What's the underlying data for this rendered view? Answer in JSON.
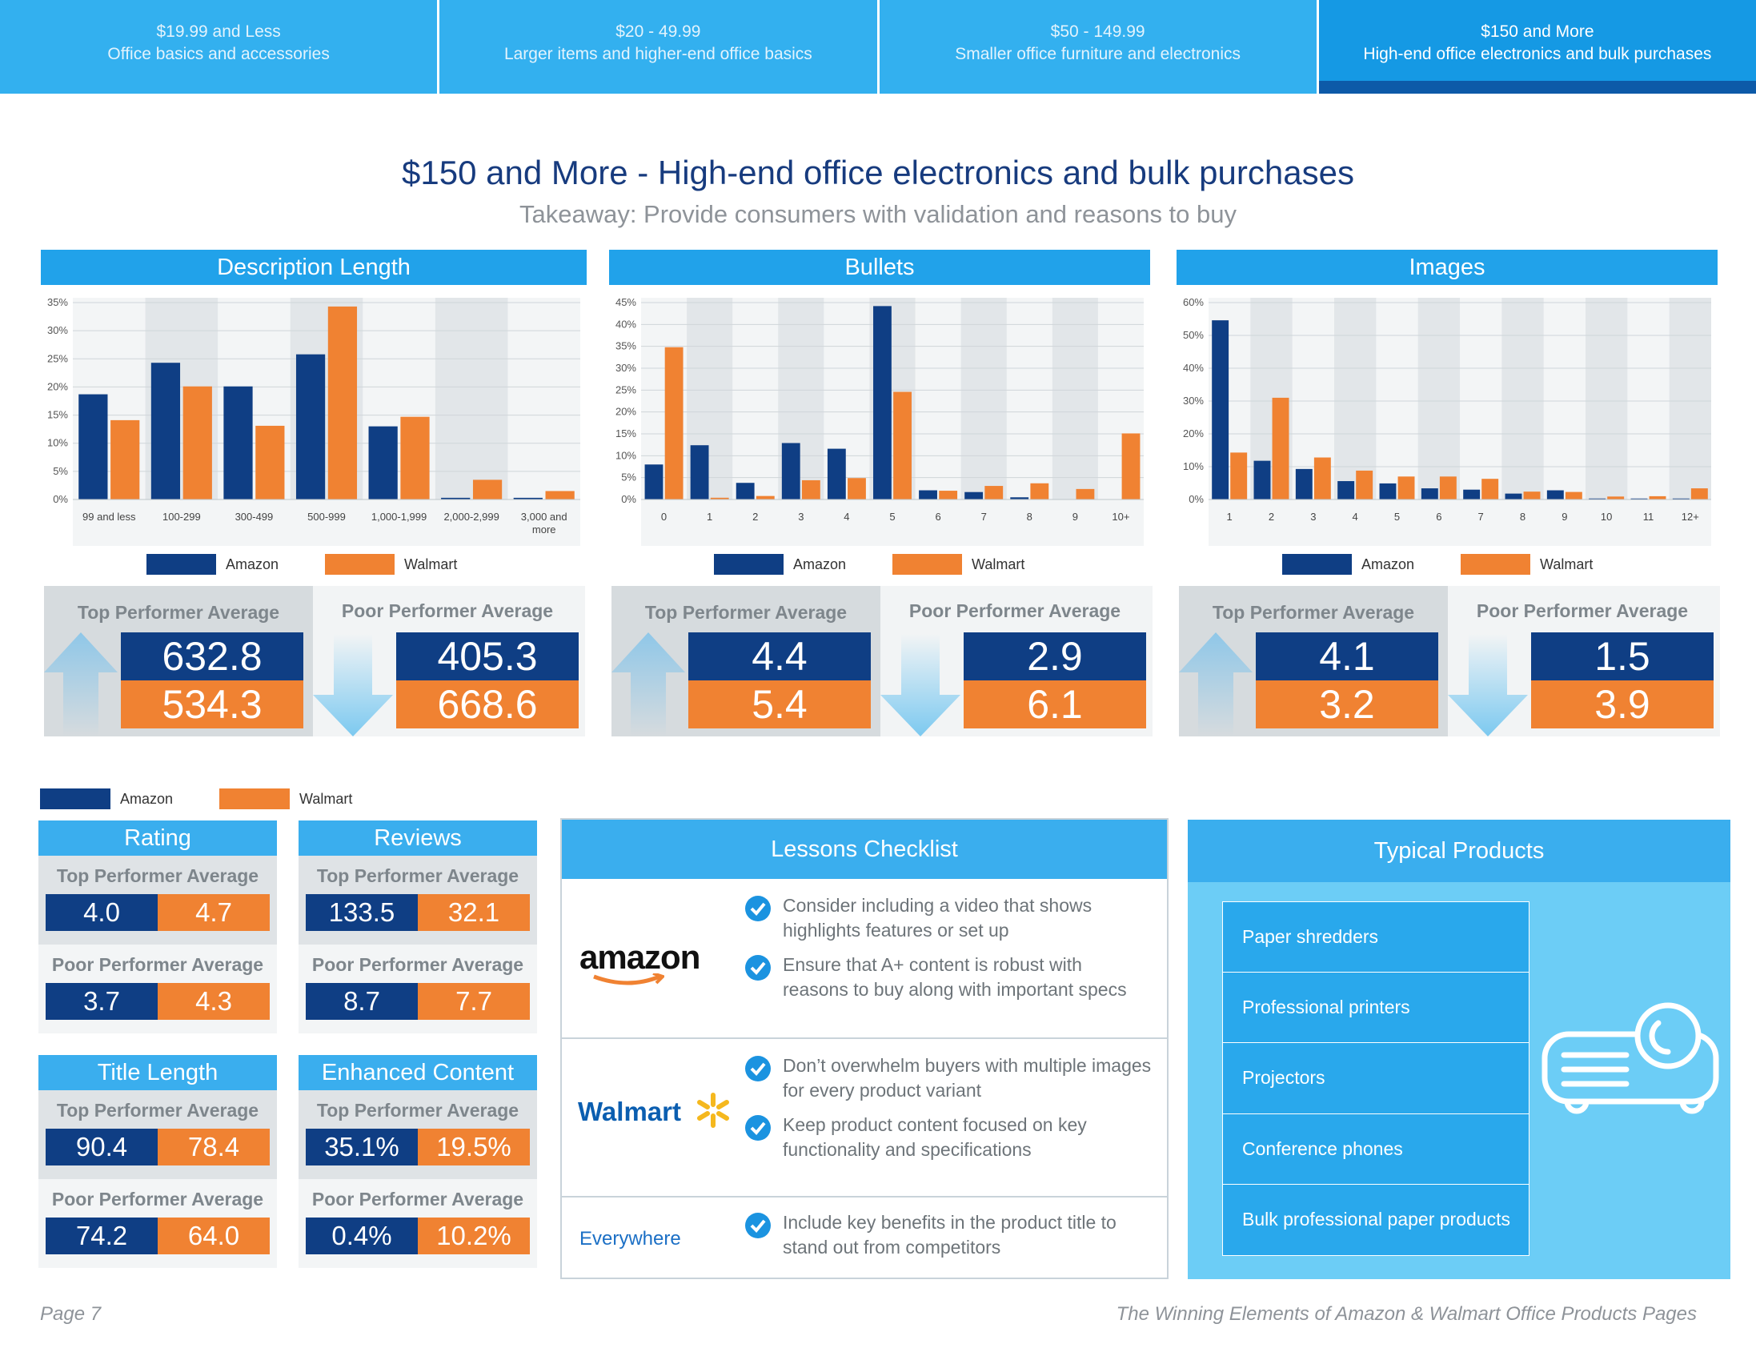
{
  "tabs": [
    {
      "line1": "$19.99 and Less",
      "line2": "Office basics and accessories"
    },
    {
      "line1": "$20 - 49.99",
      "line2": "Larger items and higher-end office basics"
    },
    {
      "line1": "$50 - 149.99",
      "line2": "Smaller office furniture and electronics"
    },
    {
      "line1": "$150 and More",
      "line2": "High-end office electronics and bulk purchases"
    }
  ],
  "title": "$150 and More - High-end office electronics and bulk purchases",
  "subtitle": "Takeaway: Provide consumers with validation and reasons to buy",
  "legend": {
    "amazon": "Amazon",
    "walmart": "Walmart"
  },
  "labels": {
    "top": "Top Performer Average",
    "poor": "Poor Performer Average"
  },
  "colors": {
    "amazon": "#0f3e84",
    "walmart": "#f08232",
    "header": "#21a2ea"
  },
  "chart_data": [
    {
      "type": "bar",
      "title": "Description Length",
      "categories": [
        "99 and less",
        "100-299",
        "300-499",
        "500-999",
        "1,000-1,999",
        "2,000-2,999",
        "3,000 and more"
      ],
      "series": [
        {
          "name": "Amazon",
          "values": [
            18.7,
            24.3,
            20.1,
            25.8,
            13.0,
            0.3,
            0.3
          ]
        },
        {
          "name": "Walmart",
          "values": [
            14.1,
            20.1,
            13.1,
            34.3,
            14.7,
            3.5,
            1.5
          ]
        }
      ],
      "ylim": [
        0,
        35
      ],
      "yticks": [
        "0%",
        "5%",
        "10%",
        "15%",
        "20%",
        "25%",
        "30%",
        "35%"
      ],
      "grid": "alternating-columns",
      "legend": "bottom"
    },
    {
      "type": "bar",
      "title": "Bullets",
      "categories": [
        "0",
        "1",
        "2",
        "3",
        "4",
        "5",
        "6",
        "7",
        "8",
        "9",
        "10+"
      ],
      "series": [
        {
          "name": "Amazon",
          "values": [
            8.0,
            12.4,
            3.8,
            12.9,
            11.6,
            44.2,
            2.1,
            1.7,
            0.5,
            0.0,
            0.0
          ]
        },
        {
          "name": "Walmart",
          "values": [
            34.8,
            0.4,
            0.8,
            4.4,
            4.9,
            24.6,
            2.0,
            3.1,
            3.7,
            2.4,
            15.1
          ]
        }
      ],
      "ylim": [
        0,
        45
      ],
      "yticks": [
        "0%",
        "5%",
        "10%",
        "15%",
        "20%",
        "25%",
        "30%",
        "35%",
        "40%",
        "45%"
      ],
      "grid": "alternating-columns",
      "legend": "bottom"
    },
    {
      "type": "bar",
      "title": "Images",
      "categories": [
        "1",
        "2",
        "3",
        "4",
        "5",
        "6",
        "7",
        "8",
        "9",
        "10",
        "11",
        "12+"
      ],
      "series": [
        {
          "name": "Amazon",
          "values": [
            54.6,
            11.8,
            9.3,
            5.6,
            4.9,
            3.4,
            3.0,
            1.8,
            2.8,
            0.3,
            0.3,
            0.3
          ]
        },
        {
          "name": "Walmart",
          "values": [
            14.3,
            31.0,
            12.8,
            8.8,
            7.0,
            7.0,
            6.3,
            2.4,
            2.3,
            0.9,
            1.0,
            3.4
          ]
        }
      ],
      "ylim": [
        0,
        60
      ],
      "yticks": [
        "0%",
        "10%",
        "20%",
        "30%",
        "40%",
        "50%",
        "60%"
      ],
      "grid": "alternating-columns",
      "legend": "bottom"
    }
  ],
  "performers": [
    {
      "top": {
        "amazon": "632.8",
        "walmart": "534.3"
      },
      "poor": {
        "amazon": "405.3",
        "walmart": "668.6"
      }
    },
    {
      "top": {
        "amazon": "4.4",
        "walmart": "5.4"
      },
      "poor": {
        "amazon": "2.9",
        "walmart": "6.1"
      }
    },
    {
      "top": {
        "amazon": "4.1",
        "walmart": "3.2"
      },
      "poor": {
        "amazon": "1.5",
        "walmart": "3.9"
      }
    }
  ],
  "metrics": {
    "rating": {
      "title": "Rating",
      "top": {
        "amazon": "4.0",
        "walmart": "4.7"
      },
      "poor": {
        "amazon": "3.7",
        "walmart": "4.3"
      }
    },
    "reviews": {
      "title": "Reviews",
      "top": {
        "amazon": "133.5",
        "walmart": "32.1"
      },
      "poor": {
        "amazon": "8.7",
        "walmart": "7.7"
      }
    },
    "title_length": {
      "title": "Title Length",
      "top": {
        "amazon": "90.4",
        "walmart": "78.4"
      },
      "poor": {
        "amazon": "74.2",
        "walmart": "64.0"
      }
    },
    "enhanced": {
      "title": "Enhanced Content",
      "top": {
        "amazon": "35.1%",
        "walmart": "19.5%"
      },
      "poor": {
        "amazon": "0.4%",
        "walmart": "10.2%"
      }
    }
  },
  "lessons": {
    "title": "Lessons Checklist",
    "amazon_logo": "amazon",
    "walmart_logo": "Walmart",
    "everywhere": "Everywhere",
    "amazon_items": [
      "Consider including a video that shows highlights features or set up",
      "Ensure that A+ content is robust with reasons to buy along with important specs"
    ],
    "walmart_items": [
      "Don’t overwhelm buyers with multiple images for every product variant",
      "Keep product content focused on key functionality and specifications"
    ],
    "everywhere_items": [
      "Include key benefits in the product title to stand out from competitors"
    ]
  },
  "typical": {
    "title": "Typical Products",
    "items": [
      "Paper shredders",
      "Professional printers",
      "Projectors",
      "Conference phones",
      "Bulk professional paper products"
    ],
    "icon": "projector-icon"
  },
  "footer": {
    "page": "Page 7",
    "doc_title": "The Winning Elements of Amazon & Walmart Office Products Pages"
  }
}
